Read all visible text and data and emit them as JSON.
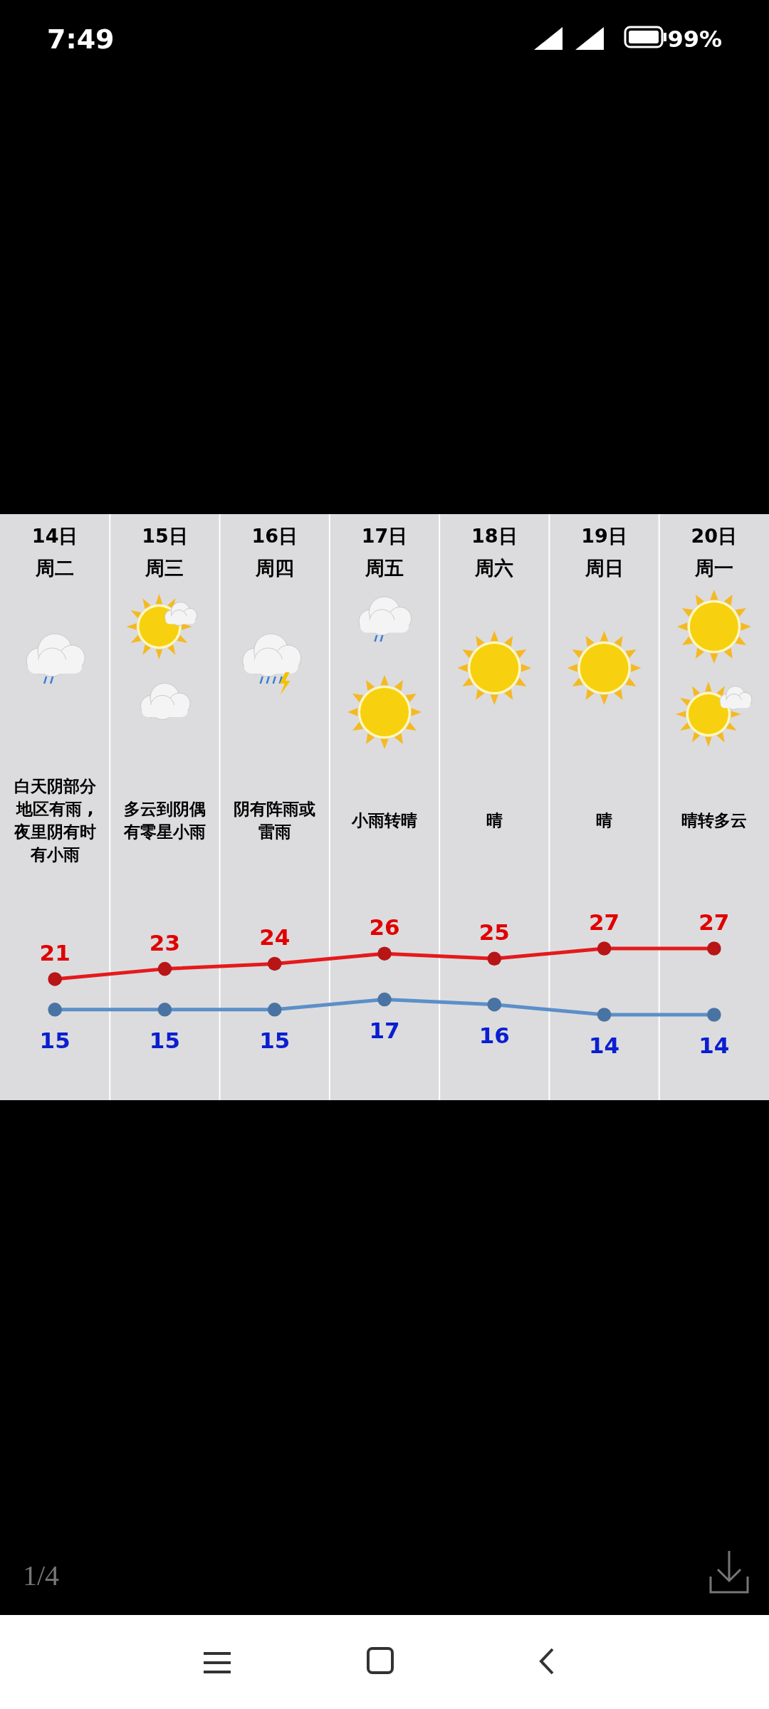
{
  "chart_data": {
    "type": "line",
    "categories": [
      "14日周二",
      "15日周三",
      "16日周四",
      "17日周五",
      "18日周六",
      "19日周日",
      "20日周一"
    ],
    "series": [
      {
        "color": "#e41a1c",
        "values": [
          21,
          23,
          24,
          26,
          25,
          27,
          27
        ]
      },
      {
        "color": "#5b8fc9",
        "values": [
          15,
          15,
          15,
          17,
          16,
          14,
          14
        ]
      }
    ],
    "marker": "circle",
    "data_labels": true,
    "grid": "x",
    "tick_labels": "x",
    "annotations": [
      "白天阴部分地区有雨 ,夜里阴有时有小雨",
      "多云到阴偶有零星小雨",
      "阴有阵雨或雷雨",
      "小雨转晴",
      "晴",
      "晴",
      "晴转多云",
      "7:49",
      "99%",
      "1/4"
    ]
  }
}
